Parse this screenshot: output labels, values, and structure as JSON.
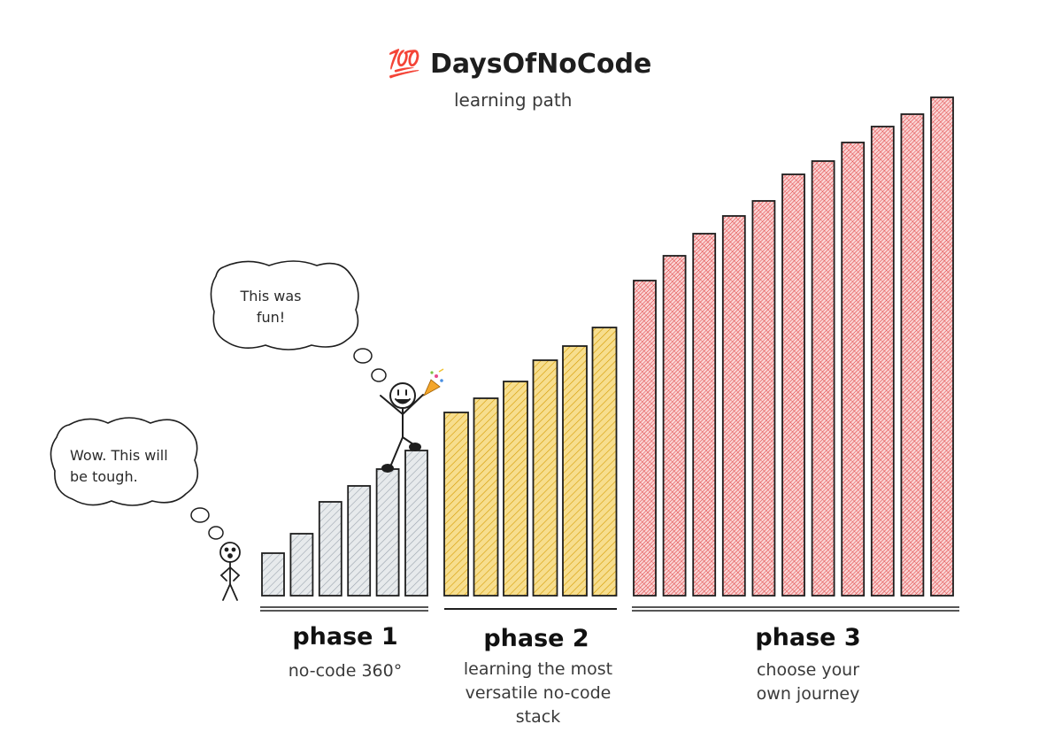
{
  "header": {
    "emoji": "💯",
    "title": "DaysOfNoCode",
    "subtitle": "learning path"
  },
  "bubbles": {
    "left": {
      "line1": "Wow. This will",
      "line2": "be tough."
    },
    "top": {
      "line1": "This was",
      "line2": "fun!"
    }
  },
  "phases": [
    {
      "title": "phase 1",
      "lines": [
        "no-code 360°"
      ]
    },
    {
      "title": "phase 2",
      "lines": [
        "learning the most",
        "versatile no-code",
        "stack"
      ]
    },
    {
      "title": "phase 3",
      "lines": [
        "choose your",
        "own journey"
      ]
    }
  ],
  "colors": {
    "phase1": "#d4d8dd",
    "phase2": "#f1c232",
    "phase3": "#f08a8a",
    "stroke": "#1e1e1e"
  },
  "chart_data": {
    "type": "bar",
    "series": [
      {
        "values": [
          48,
          70,
          106,
          124,
          143,
          164
        ]
      },
      {
        "values": [
          207,
          223,
          242,
          266,
          282,
          303
        ]
      },
      {
        "values": [
          356,
          384,
          409,
          429,
          446,
          476,
          491,
          512,
          530,
          544,
          563
        ]
      }
    ]
  }
}
